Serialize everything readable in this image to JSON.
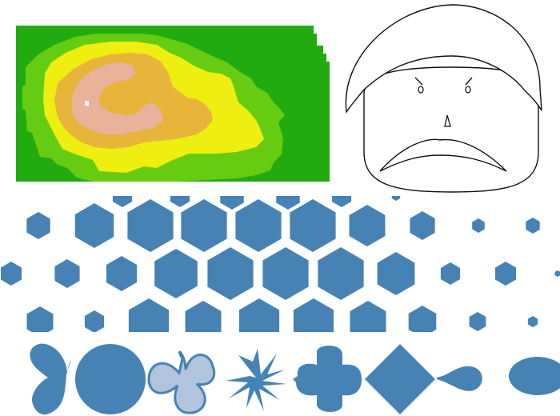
{
  "colors": {
    "terrain_base": "#22aa11",
    "terrain_lowland": "#66cc11",
    "terrain_plains": "#eeee11",
    "terrain_hills": "#e8b43a",
    "terrain_peak": "#e8b39a",
    "terrain_marker": "#ffffff",
    "outline": "#111111",
    "shape_fill": "#4682b4",
    "shape_fill_light": "#b0c4de"
  },
  "panels": {
    "terrain": {
      "icon": "contour-map-icon"
    },
    "face": {
      "icon": "grumpy-face-icon"
    },
    "hexfield": {
      "icon": "hexagon-field-icon"
    },
    "shapes": {
      "icons": [
        "bowtie-icon",
        "circle-icon",
        "propeller-icon",
        "pinwheel-icon",
        "cross-blob-icon",
        "diamond-icon",
        "teardrop-icon",
        "ellipse-icon"
      ]
    }
  }
}
